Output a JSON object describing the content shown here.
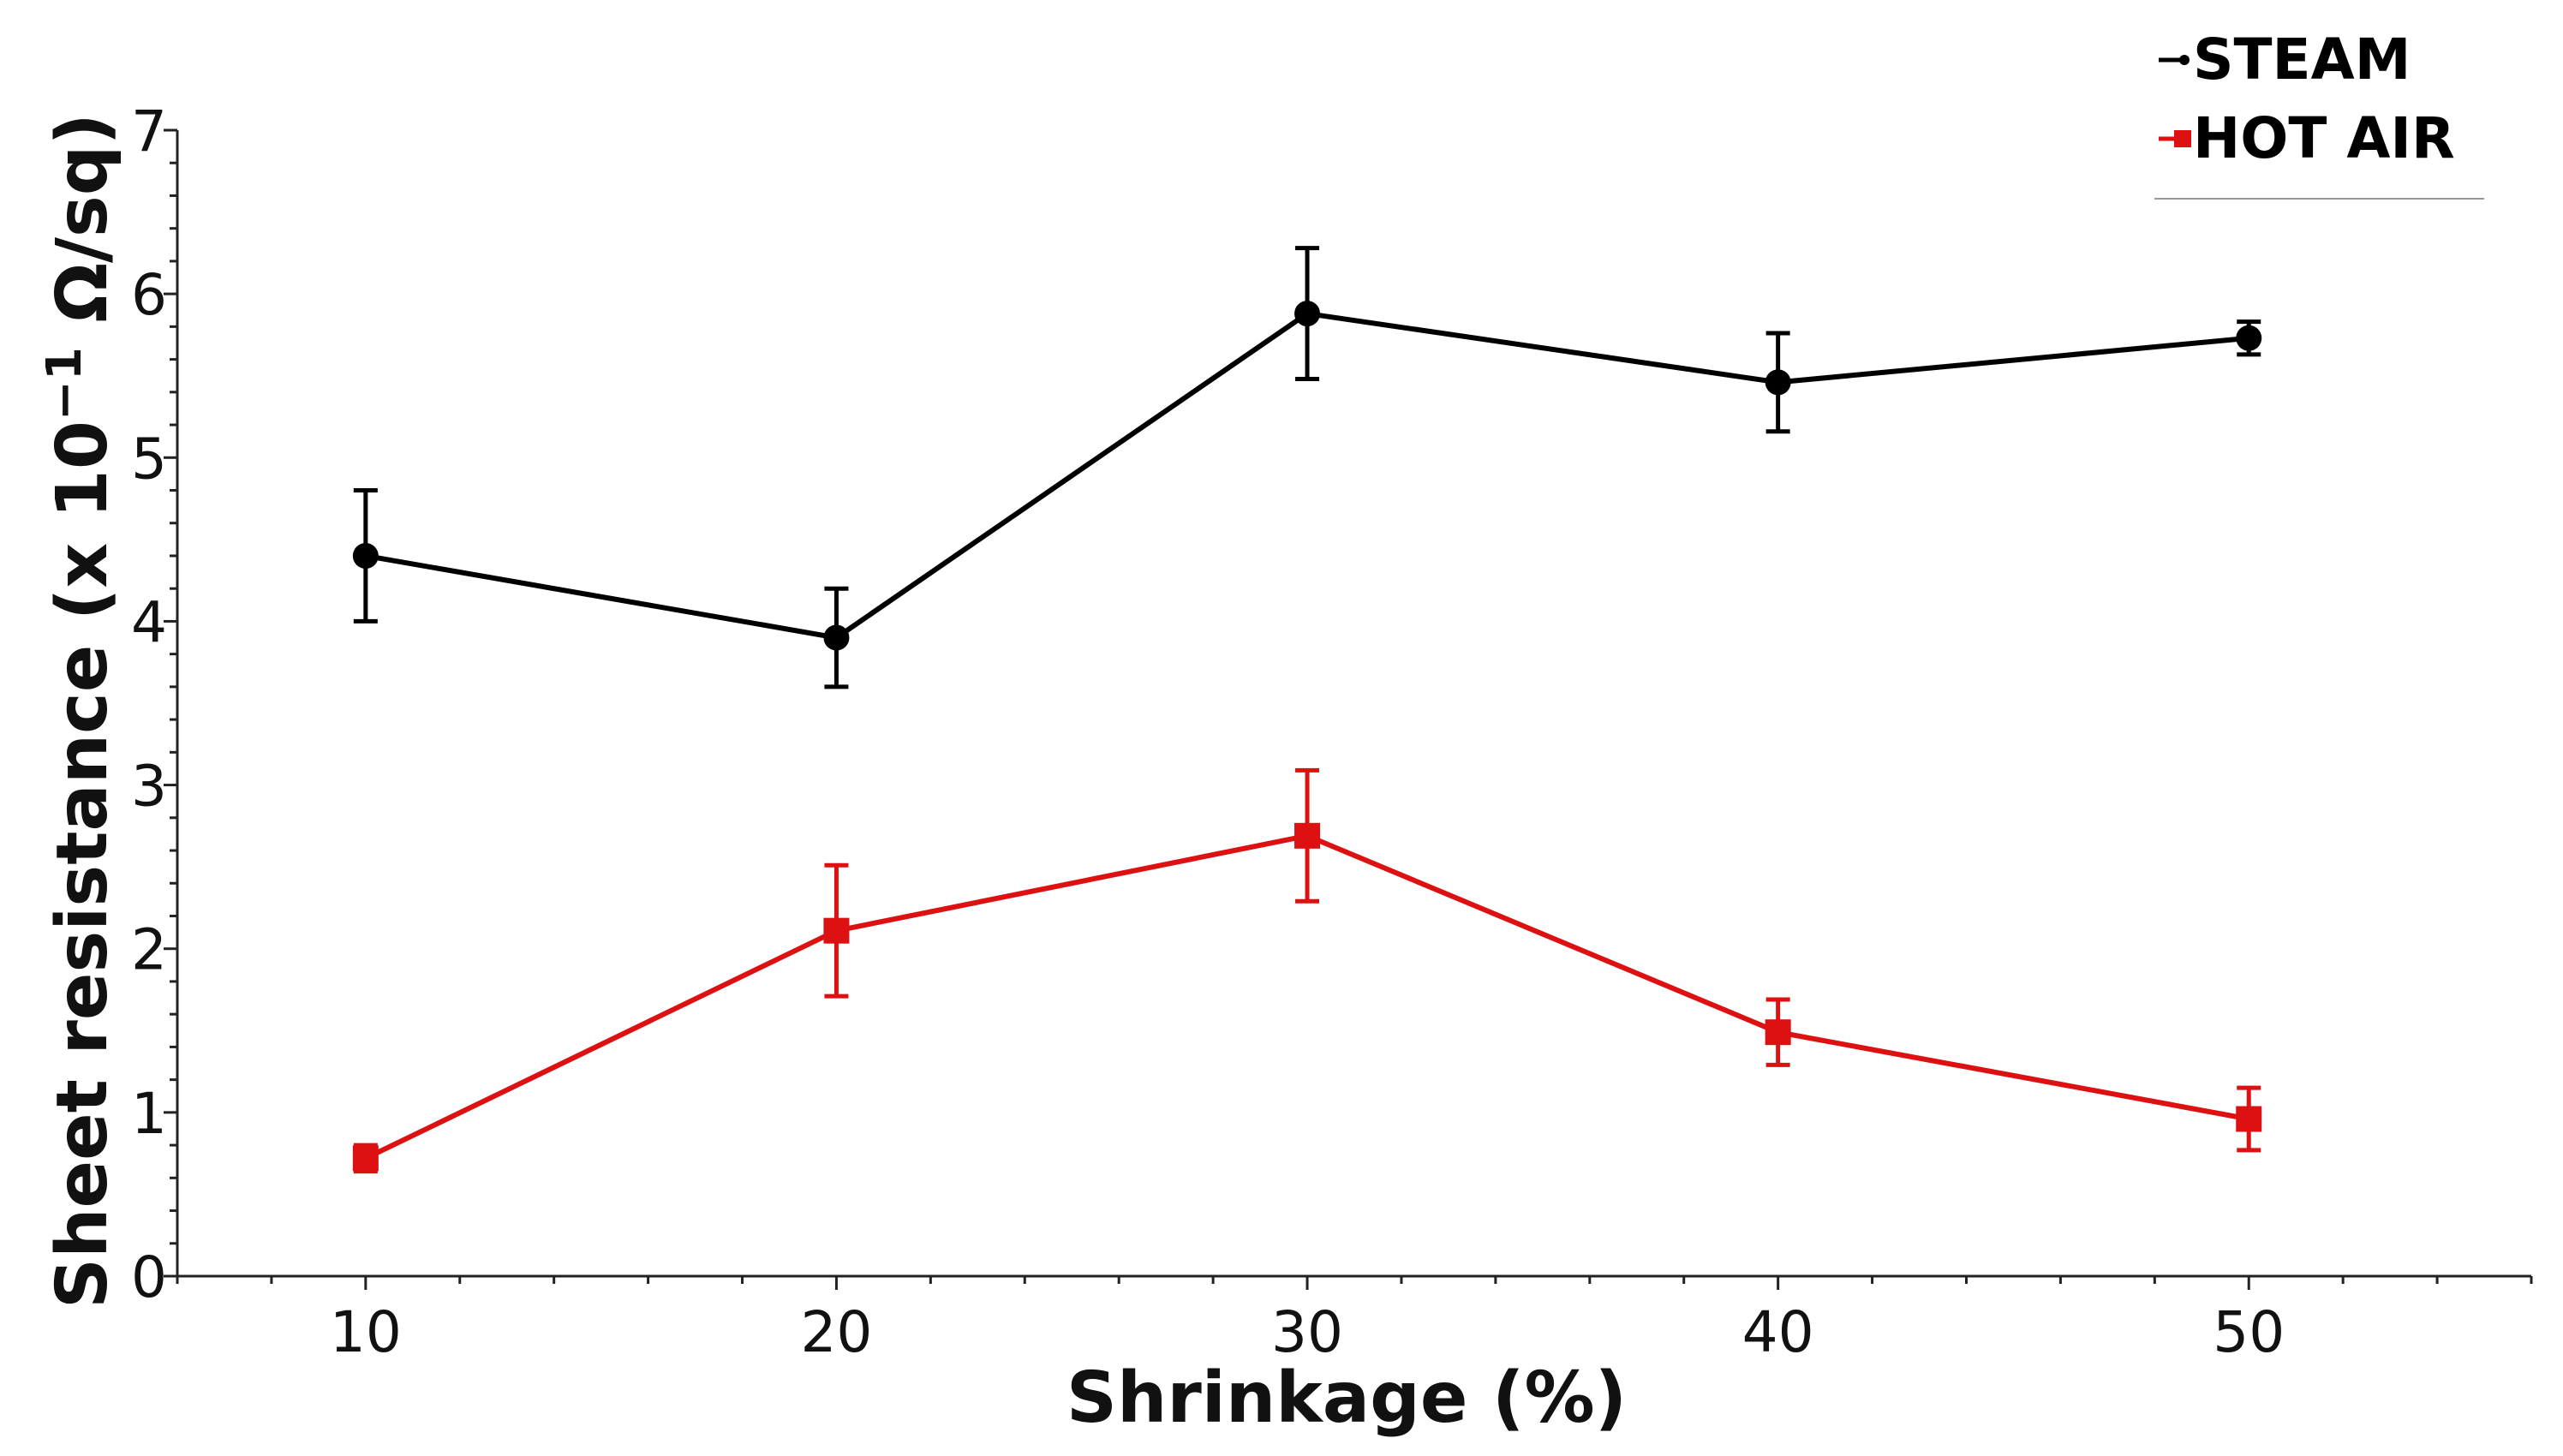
{
  "chart_data": {
    "type": "line",
    "title": "",
    "xlabel": "Shrinkage (%)",
    "ylabel_prefix": "Sheet resistance (x 10",
    "ylabel_exp": "−1",
    "ylabel_suffix": " Ω/sq)",
    "x": [
      10,
      20,
      30,
      40,
      50
    ],
    "xticks": [
      10,
      20,
      30,
      40,
      50
    ],
    "xlim": [
      6,
      56
    ],
    "yticks": [
      0,
      1,
      2,
      3,
      4,
      5,
      6,
      7
    ],
    "ylim": [
      0,
      7
    ],
    "grid": false,
    "legend_position": "top-right",
    "series": [
      {
        "name": "STEAM",
        "color": "#000000",
        "marker": "circle",
        "values": [
          4.4,
          3.9,
          5.88,
          5.46,
          5.73
        ],
        "errors": [
          0.4,
          0.3,
          0.4,
          0.3,
          0.1
        ]
      },
      {
        "name": "HOT AIR",
        "color": "#dd1111",
        "marker": "square",
        "values": [
          0.72,
          2.11,
          2.69,
          1.49,
          0.96
        ],
        "errors": [
          0.08,
          0.4,
          0.4,
          0.2,
          0.19
        ]
      }
    ]
  }
}
